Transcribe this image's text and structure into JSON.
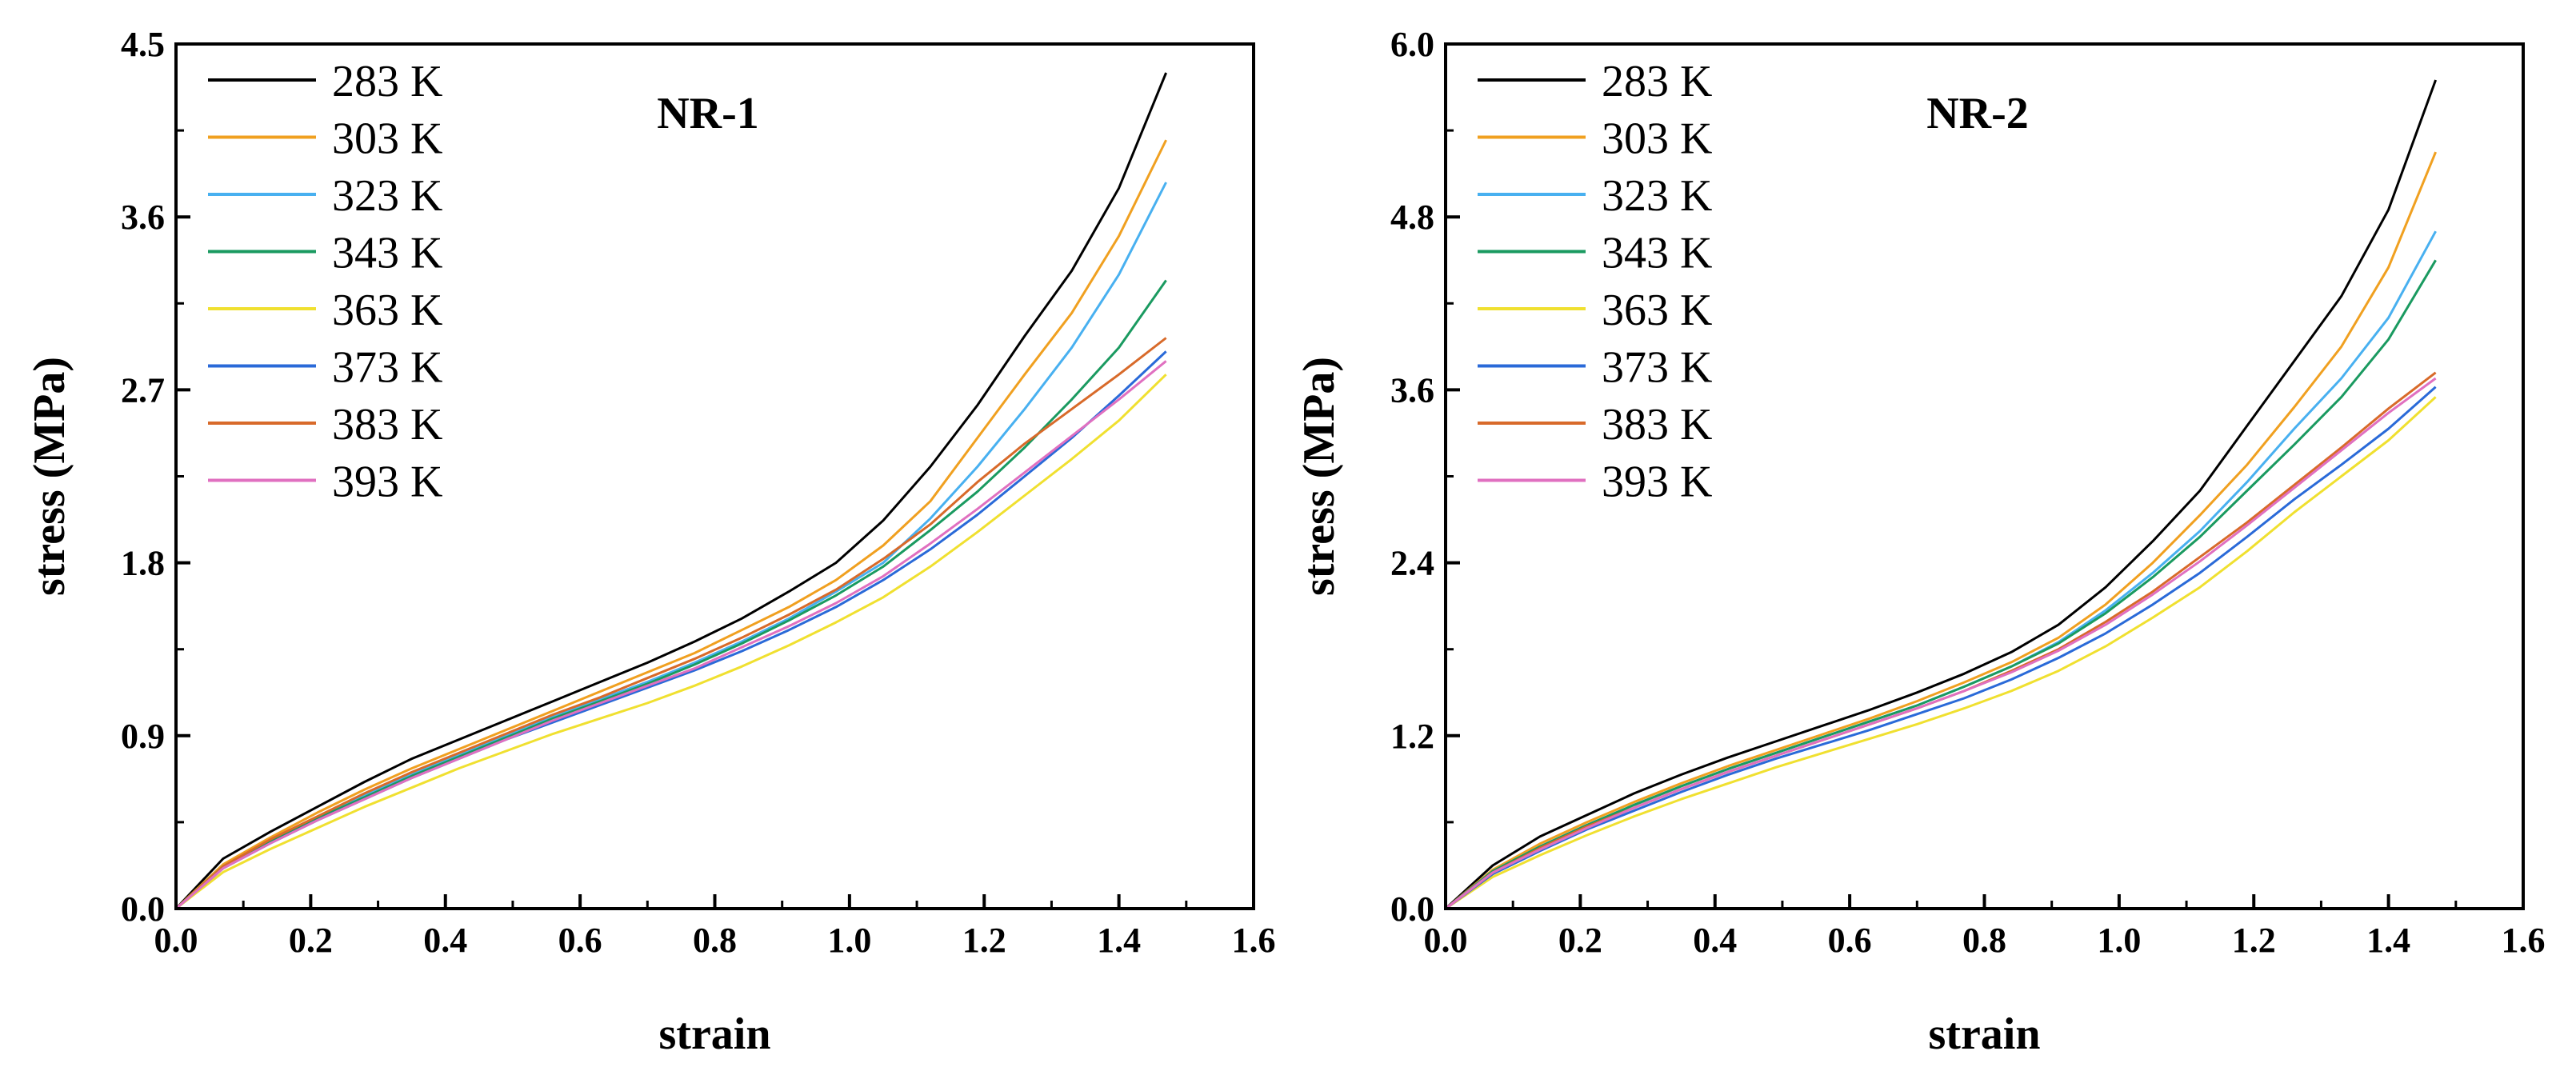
{
  "colors": {
    "283 K": "#000000",
    "303 K": "#f0a020",
    "323 K": "#48b0f0",
    "343 K": "#1a9a60",
    "363 K": "#f0e030",
    "373 K": "#2a6ad8",
    "383 K": "#d86a2a",
    "393 K": "#e070c0"
  },
  "chart_data": [
    {
      "type": "line",
      "title": "NR-1",
      "xlabel": "strain",
      "ylabel": "stress (MPa)",
      "xlim": [
        0.0,
        1.6
      ],
      "ylim": [
        0.0,
        4.5
      ],
      "xticks": [
        "0.0",
        "0.2",
        "0.4",
        "0.6",
        "0.8",
        "1.0",
        "1.2",
        "1.4",
        "1.6"
      ],
      "yticks": [
        "0.0",
        "0.9",
        "1.8",
        "2.7",
        "3.6",
        "4.5"
      ],
      "x": [
        0.0,
        0.07,
        0.14,
        0.21,
        0.28,
        0.35,
        0.42,
        0.49,
        0.56,
        0.63,
        0.7,
        0.77,
        0.84,
        0.91,
        0.98,
        1.05,
        1.12,
        1.19,
        1.26,
        1.33,
        1.4,
        1.47
      ],
      "series": [
        {
          "name": "283 K",
          "values": [
            0.0,
            0.26,
            0.4,
            0.53,
            0.66,
            0.78,
            0.88,
            0.98,
            1.08,
            1.18,
            1.28,
            1.39,
            1.51,
            1.65,
            1.8,
            2.02,
            2.3,
            2.62,
            2.98,
            3.32,
            3.75,
            4.35
          ]
        },
        {
          "name": "303 K",
          "values": [
            0.0,
            0.23,
            0.37,
            0.5,
            0.62,
            0.73,
            0.83,
            0.93,
            1.03,
            1.13,
            1.23,
            1.33,
            1.45,
            1.57,
            1.71,
            1.89,
            2.12,
            2.45,
            2.78,
            3.1,
            3.5,
            4.0
          ]
        },
        {
          "name": "323 K",
          "values": [
            0.0,
            0.22,
            0.35,
            0.47,
            0.59,
            0.7,
            0.8,
            0.9,
            1.0,
            1.09,
            1.18,
            1.28,
            1.39,
            1.51,
            1.65,
            1.8,
            2.03,
            2.3,
            2.6,
            2.92,
            3.3,
            3.78
          ]
        },
        {
          "name": "343 K",
          "values": [
            0.0,
            0.22,
            0.35,
            0.47,
            0.58,
            0.69,
            0.79,
            0.89,
            0.99,
            1.08,
            1.17,
            1.27,
            1.38,
            1.5,
            1.63,
            1.78,
            1.97,
            2.17,
            2.4,
            2.65,
            2.92,
            3.27
          ]
        },
        {
          "name": "363 K",
          "values": [
            0.0,
            0.19,
            0.31,
            0.42,
            0.53,
            0.63,
            0.73,
            0.82,
            0.91,
            0.99,
            1.07,
            1.16,
            1.26,
            1.37,
            1.49,
            1.62,
            1.78,
            1.96,
            2.15,
            2.34,
            2.54,
            2.78
          ]
        },
        {
          "name": "373 K",
          "values": [
            0.0,
            0.21,
            0.34,
            0.46,
            0.57,
            0.68,
            0.78,
            0.88,
            0.97,
            1.06,
            1.15,
            1.24,
            1.34,
            1.45,
            1.57,
            1.71,
            1.87,
            2.05,
            2.25,
            2.45,
            2.67,
            2.9
          ]
        },
        {
          "name": "383 K",
          "values": [
            0.0,
            0.22,
            0.36,
            0.48,
            0.6,
            0.71,
            0.81,
            0.91,
            1.01,
            1.1,
            1.2,
            1.3,
            1.41,
            1.53,
            1.66,
            1.82,
            2.0,
            2.22,
            2.42,
            2.6,
            2.78,
            2.97
          ]
        },
        {
          "name": "393 K",
          "values": [
            0.0,
            0.21,
            0.34,
            0.46,
            0.57,
            0.68,
            0.78,
            0.88,
            0.98,
            1.07,
            1.16,
            1.25,
            1.36,
            1.47,
            1.59,
            1.73,
            1.9,
            2.08,
            2.27,
            2.46,
            2.65,
            2.85
          ]
        }
      ]
    },
    {
      "type": "line",
      "title": "NR-2",
      "xlabel": "strain",
      "ylabel": "stress (MPa)",
      "xlim": [
        0.0,
        1.6
      ],
      "ylim": [
        0.0,
        6.0
      ],
      "xticks": [
        "0.0",
        "0.2",
        "0.4",
        "0.6",
        "0.8",
        "1.0",
        "1.2",
        "1.4",
        "1.6"
      ],
      "yticks": [
        "0.0",
        "1.2",
        "2.4",
        "3.6",
        "4.8",
        "6.0"
      ],
      "x": [
        0.0,
        0.07,
        0.14,
        0.21,
        0.28,
        0.35,
        0.42,
        0.49,
        0.56,
        0.63,
        0.7,
        0.77,
        0.84,
        0.91,
        0.98,
        1.05,
        1.12,
        1.19,
        1.26,
        1.33,
        1.4,
        1.47
      ],
      "series": [
        {
          "name": "283 K",
          "values": [
            0.0,
            0.3,
            0.5,
            0.65,
            0.8,
            0.93,
            1.05,
            1.16,
            1.27,
            1.38,
            1.5,
            1.63,
            1.78,
            1.97,
            2.23,
            2.55,
            2.9,
            3.35,
            3.8,
            4.25,
            4.85,
            5.75
          ]
        },
        {
          "name": "303 K",
          "values": [
            0.0,
            0.27,
            0.45,
            0.6,
            0.74,
            0.87,
            0.99,
            1.1,
            1.21,
            1.32,
            1.44,
            1.57,
            1.71,
            1.88,
            2.11,
            2.4,
            2.73,
            3.08,
            3.48,
            3.9,
            4.45,
            5.25
          ]
        },
        {
          "name": "323 K",
          "values": [
            0.0,
            0.26,
            0.43,
            0.58,
            0.72,
            0.85,
            0.97,
            1.08,
            1.19,
            1.3,
            1.41,
            1.54,
            1.68,
            1.85,
            2.07,
            2.33,
            2.62,
            2.96,
            3.33,
            3.68,
            4.1,
            4.7
          ]
        },
        {
          "name": "343 K",
          "values": [
            0.0,
            0.26,
            0.43,
            0.58,
            0.72,
            0.85,
            0.97,
            1.08,
            1.19,
            1.3,
            1.41,
            1.54,
            1.68,
            1.84,
            2.05,
            2.3,
            2.58,
            2.9,
            3.22,
            3.55,
            3.95,
            4.5
          ]
        },
        {
          "name": "363 K",
          "values": [
            0.0,
            0.22,
            0.37,
            0.51,
            0.64,
            0.76,
            0.87,
            0.98,
            1.08,
            1.18,
            1.28,
            1.39,
            1.51,
            1.65,
            1.82,
            2.02,
            2.23,
            2.48,
            2.75,
            3.0,
            3.25,
            3.55
          ]
        },
        {
          "name": "373 K",
          "values": [
            0.0,
            0.24,
            0.4,
            0.55,
            0.68,
            0.81,
            0.93,
            1.04,
            1.14,
            1.24,
            1.35,
            1.46,
            1.59,
            1.74,
            1.91,
            2.11,
            2.33,
            2.58,
            2.84,
            3.08,
            3.33,
            3.62
          ]
        },
        {
          "name": "383 K",
          "values": [
            0.0,
            0.25,
            0.42,
            0.57,
            0.7,
            0.83,
            0.95,
            1.06,
            1.17,
            1.28,
            1.39,
            1.51,
            1.65,
            1.8,
            1.99,
            2.2,
            2.44,
            2.68,
            2.94,
            3.2,
            3.47,
            3.72
          ]
        },
        {
          "name": "393 K",
          "values": [
            0.0,
            0.25,
            0.41,
            0.56,
            0.7,
            0.83,
            0.95,
            1.06,
            1.17,
            1.28,
            1.39,
            1.51,
            1.64,
            1.79,
            1.97,
            2.18,
            2.41,
            2.66,
            2.92,
            3.18,
            3.44,
            3.68
          ]
        }
      ]
    }
  ]
}
